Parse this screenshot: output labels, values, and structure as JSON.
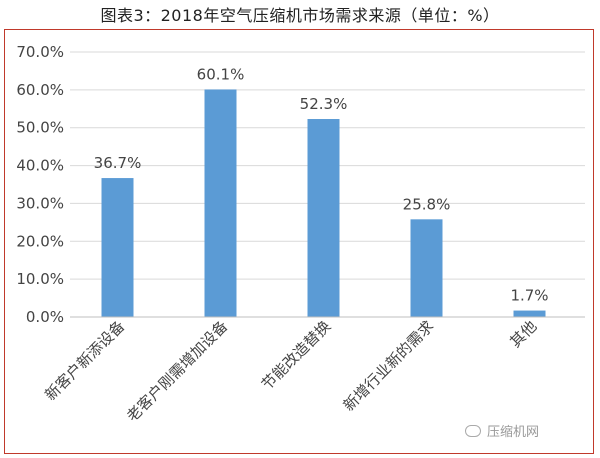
{
  "title": "图表3：2018年空气压缩机市场需求来源（单位：%）",
  "watermark": "压缩机网",
  "colors": {
    "bar": "#5b9bd5",
    "border": "#c0392b",
    "grid": "#d9d9d9"
  },
  "chart_data": {
    "type": "bar",
    "title": "图表3：2018年空气压缩机市场需求来源（单位：%）",
    "categories": [
      "新客户新添设备",
      "老客户刚需增加设备",
      "节能改造替换",
      "新增行业新的需求",
      "其他"
    ],
    "values": [
      36.7,
      60.1,
      52.3,
      25.8,
      1.7
    ],
    "value_labels": [
      "36.7%",
      "60.1%",
      "52.3%",
      "25.8%",
      "1.7%"
    ],
    "ylim": [
      0,
      70
    ],
    "yticks": [
      "0.0%",
      "10.0%",
      "20.0%",
      "30.0%",
      "40.0%",
      "50.0%",
      "60.0%",
      "70.0%"
    ],
    "grid": true
  }
}
